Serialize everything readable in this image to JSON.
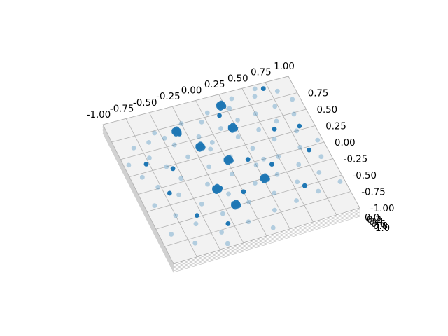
{
  "chart_data": {
    "type": "scatter",
    "projection": "3d",
    "title": "",
    "xlabel": "",
    "ylabel": "",
    "zlabel": "",
    "xlim": [
      -1.0,
      1.0
    ],
    "ylim": [
      -1.0,
      1.0
    ],
    "zlim": [
      0.0,
      1.0
    ],
    "grid": true,
    "marker_color": "#1f77b4",
    "pane_color": "#f2f2f2",
    "grid_color": "#b0b0b0",
    "x_ticks": [
      "-1.00",
      "-0.75",
      "-0.50",
      "-0.25",
      "0.00",
      "0.25",
      "0.50",
      "0.75",
      "1.00"
    ],
    "y_ticks": [
      "0.75",
      "0.50",
      "0.25",
      "0.00",
      "-0.25",
      "-0.50",
      "-0.75",
      "-1.00"
    ],
    "z_ticks": [
      "0.0",
      "0.2",
      "0.4",
      "0.6",
      "0.8",
      "1.0"
    ],
    "points": [
      {
        "x": -0.82,
        "y": 0.6,
        "z": 0.0
      },
      {
        "x": -0.65,
        "y": 0.62,
        "z": 0.0
      },
      {
        "x": -0.48,
        "y": 0.62,
        "z": 0.0
      },
      {
        "x": -0.35,
        "y": 0.63,
        "z": 0.0
      },
      {
        "x": -0.05,
        "y": 0.7,
        "z": 0.0
      },
      {
        "x": 0.28,
        "y": 0.78,
        "z": 0.0
      },
      {
        "x": 0.58,
        "y": 0.85,
        "z": 0.0
      },
      {
        "x": 0.82,
        "y": 0.84,
        "z": 0.0
      },
      {
        "x": -0.72,
        "y": 0.42,
        "z": 0.0
      },
      {
        "x": -0.42,
        "y": 0.5,
        "z": 0.0
      },
      {
        "x": -0.15,
        "y": 0.52,
        "z": 0.0
      },
      {
        "x": 0.1,
        "y": 0.55,
        "z": 0.0
      },
      {
        "x": 0.3,
        "y": 0.6,
        "z": 0.0
      },
      {
        "x": 0.5,
        "y": 0.62,
        "z": 0.0
      },
      {
        "x": 0.72,
        "y": 0.65,
        "z": 0.0
      },
      {
        "x": 0.92,
        "y": 0.68,
        "z": 0.0
      },
      {
        "x": -0.88,
        "y": 0.2,
        "z": 0.0
      },
      {
        "x": -0.6,
        "y": 0.25,
        "z": 0.0
      },
      {
        "x": -0.35,
        "y": 0.3,
        "z": 0.0
      },
      {
        "x": -0.1,
        "y": 0.32,
        "z": 0.0
      },
      {
        "x": 0.22,
        "y": 0.38,
        "z": 0.0
      },
      {
        "x": 0.45,
        "y": 0.4,
        "z": 0.0
      },
      {
        "x": 0.66,
        "y": 0.45,
        "z": 0.0
      },
      {
        "x": 0.86,
        "y": 0.48,
        "z": 0.0
      },
      {
        "x": -0.78,
        "y": 0.02,
        "z": 0.0
      },
      {
        "x": -0.52,
        "y": 0.05,
        "z": 0.0
      },
      {
        "x": -0.2,
        "y": 0.1,
        "z": 0.0
      },
      {
        "x": 0.05,
        "y": 0.15,
        "z": 0.0
      },
      {
        "x": 0.3,
        "y": 0.18,
        "z": 0.0
      },
      {
        "x": 0.55,
        "y": 0.22,
        "z": 0.0
      },
      {
        "x": 0.8,
        "y": 0.25,
        "z": 0.0
      },
      {
        "x": -0.9,
        "y": -0.2,
        "z": 0.0
      },
      {
        "x": -0.62,
        "y": -0.15,
        "z": 0.0
      },
      {
        "x": -0.3,
        "y": -0.12,
        "z": 0.0
      },
      {
        "x": -0.02,
        "y": -0.08,
        "z": 0.0
      },
      {
        "x": 0.25,
        "y": -0.05,
        "z": 0.0
      },
      {
        "x": 0.5,
        "y": -0.02,
        "z": 0.0
      },
      {
        "x": 0.75,
        "y": 0.02,
        "z": 0.0
      },
      {
        "x": 0.95,
        "y": 0.05,
        "z": 0.0
      },
      {
        "x": -0.75,
        "y": -0.4,
        "z": 0.0
      },
      {
        "x": -0.45,
        "y": -0.35,
        "z": 0.0
      },
      {
        "x": -0.15,
        "y": -0.32,
        "z": 0.0
      },
      {
        "x": 0.15,
        "y": -0.28,
        "z": 0.0
      },
      {
        "x": 0.4,
        "y": -0.25,
        "z": 0.0
      },
      {
        "x": 0.65,
        "y": -0.2,
        "z": 0.0
      },
      {
        "x": 0.9,
        "y": -0.18,
        "z": 0.0
      },
      {
        "x": -0.88,
        "y": -0.62,
        "z": 0.0
      },
      {
        "x": -0.6,
        "y": -0.58,
        "z": 0.0
      },
      {
        "x": -0.3,
        "y": -0.55,
        "z": 0.0
      },
      {
        "x": 0.0,
        "y": -0.5,
        "z": 0.0
      },
      {
        "x": 0.28,
        "y": -0.48,
        "z": 0.0
      },
      {
        "x": 0.55,
        "y": -0.42,
        "z": 0.0
      },
      {
        "x": 0.8,
        "y": -0.38,
        "z": 0.0
      },
      {
        "x": -0.7,
        "y": -0.82,
        "z": 0.0
      },
      {
        "x": -0.4,
        "y": -0.78,
        "z": 0.0
      },
      {
        "x": -0.1,
        "y": -0.75,
        "z": 0.0
      },
      {
        "x": 0.2,
        "y": -0.7,
        "z": 0.0
      },
      {
        "x": 0.45,
        "y": -0.66,
        "z": 0.0
      },
      {
        "x": 0.7,
        "y": -0.62,
        "z": 0.0
      },
      {
        "x": 0.95,
        "y": -0.58,
        "z": 0.0
      },
      {
        "x": -0.55,
        "y": 0.72,
        "z": 0.0
      },
      {
        "x": -0.25,
        "y": 0.75,
        "z": 0.0
      },
      {
        "x": 0.05,
        "y": 0.8,
        "z": 0.0
      },
      {
        "x": 0.35,
        "y": 0.9,
        "z": 0.0
      },
      {
        "x": 0.62,
        "y": 0.95,
        "z": 0.0
      },
      {
        "x": -0.95,
        "y": 0.4,
        "z": 0.0
      },
      {
        "x": -0.05,
        "y": 0.4,
        "z": 0.0
      },
      {
        "x": 0.35,
        "y": 0.0,
        "z": 0.0
      },
      {
        "x": -0.4,
        "y": -0.95,
        "z": 0.0
      },
      {
        "x": 0.1,
        "y": -0.92,
        "z": 0.0
      },
      {
        "x": -0.78,
        "y": 0.35,
        "z": 0.02
      },
      {
        "x": -0.32,
        "y": 0.62,
        "z": 0.02
      },
      {
        "x": 0.15,
        "y": 0.72,
        "z": 0.02
      },
      {
        "x": 0.7,
        "y": 0.92,
        "z": 0.02
      },
      {
        "x": -0.55,
        "y": 0.2,
        "z": 0.02
      },
      {
        "x": 0.2,
        "y": 0.05,
        "z": 0.02
      },
      {
        "x": 0.6,
        "y": 0.35,
        "z": 0.02
      },
      {
        "x": 0.85,
        "y": 0.3,
        "z": 0.02
      },
      {
        "x": -0.7,
        "y": -0.1,
        "z": 0.02
      },
      {
        "x": -0.2,
        "y": -0.22,
        "z": 0.02
      },
      {
        "x": 0.4,
        "y": -0.1,
        "z": 0.02
      },
      {
        "x": 0.82,
        "y": -0.05,
        "z": 0.02
      },
      {
        "x": -0.55,
        "y": -0.48,
        "z": 0.02
      },
      {
        "x": 0.0,
        "y": -0.35,
        "z": 0.02
      },
      {
        "x": 0.6,
        "y": -0.5,
        "z": 0.02
      },
      {
        "x": -0.3,
        "y": -0.7,
        "z": 0.02
      },
      {
        "x": -0.35,
        "y": 0.6,
        "z": 0.5,
        "cluster": true
      },
      {
        "x": 0.2,
        "y": 0.78,
        "z": 0.5,
        "cluster": true
      },
      {
        "x": -0.2,
        "y": 0.32,
        "z": 0.5,
        "cluster": true
      },
      {
        "x": 0.2,
        "y": 0.45,
        "z": 0.5,
        "cluster": true
      },
      {
        "x": 0.0,
        "y": 0.05,
        "z": 0.5,
        "cluster": true
      },
      {
        "x": -0.25,
        "y": -0.28,
        "z": 0.5,
        "cluster": true
      },
      {
        "x": -0.15,
        "y": -0.55,
        "z": 0.5,
        "cluster": true
      },
      {
        "x": 0.25,
        "y": -0.32,
        "z": 0.5,
        "cluster": true
      }
    ]
  }
}
